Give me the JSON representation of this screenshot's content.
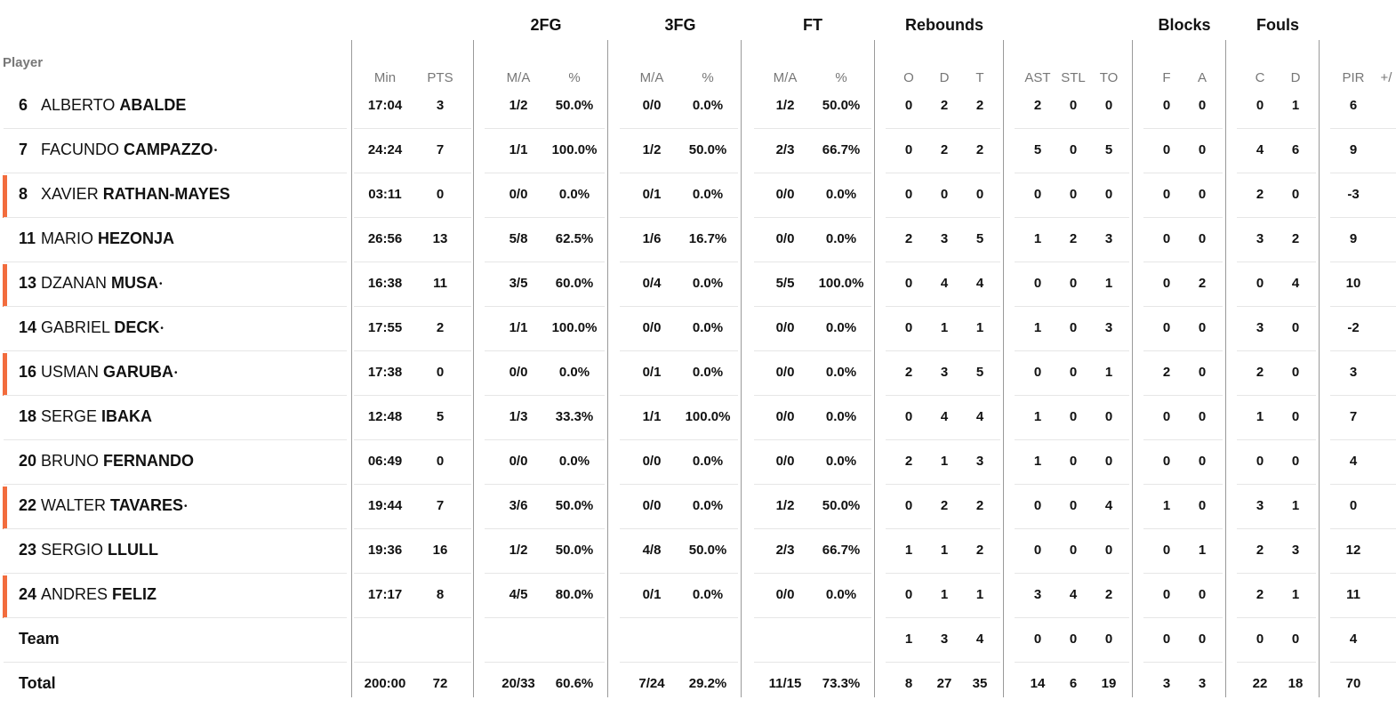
{
  "header": {
    "player_label": "Player",
    "groups": {
      "fg2": "2FG",
      "fg3": "3FG",
      "ft": "FT",
      "reb": "Rebounds",
      "blk": "Blocks",
      "fouls": "Fouls"
    },
    "cols": {
      "min": "Min",
      "pts": "PTS",
      "fg2_ma": "M/A",
      "fg2_pct": "%",
      "fg3_ma": "M/A",
      "fg3_pct": "%",
      "ft_ma": "M/A",
      "ft_pct": "%",
      "o": "O",
      "d": "D",
      "t": "T",
      "ast": "AST",
      "stl": "STL",
      "to": "TO",
      "bf": "F",
      "ba": "A",
      "fc": "C",
      "fd": "D",
      "pir": "PIR",
      "pm": "+/"
    }
  },
  "rows": [
    {
      "num": "6",
      "first": "ALBERTO",
      "last": "ABALDE",
      "star": "",
      "marker": false,
      "min": "17:04",
      "pts": "3",
      "fg2_ma": "1/2",
      "fg2_pct": "50.0%",
      "fg3_ma": "0/0",
      "fg3_pct": "0.0%",
      "ft_ma": "1/2",
      "ft_pct": "50.0%",
      "o": "0",
      "d": "2",
      "t": "2",
      "ast": "2",
      "stl": "0",
      "to": "0",
      "bf": "0",
      "ba": "0",
      "fc": "0",
      "fd": "1",
      "pir": "6"
    },
    {
      "num": "7",
      "first": "FACUNDO",
      "last": "CAMPAZZO",
      "star": "•",
      "marker": false,
      "min": "24:24",
      "pts": "7",
      "fg2_ma": "1/1",
      "fg2_pct": "100.0%",
      "fg3_ma": "1/2",
      "fg3_pct": "50.0%",
      "ft_ma": "2/3",
      "ft_pct": "66.7%",
      "o": "0",
      "d": "2",
      "t": "2",
      "ast": "5",
      "stl": "0",
      "to": "5",
      "bf": "0",
      "ba": "0",
      "fc": "4",
      "fd": "6",
      "pir": "9"
    },
    {
      "num": "8",
      "first": "XAVIER",
      "last": "RATHAN-MAYES",
      "star": "",
      "marker": true,
      "min": "03:11",
      "pts": "0",
      "fg2_ma": "0/0",
      "fg2_pct": "0.0%",
      "fg3_ma": "0/1",
      "fg3_pct": "0.0%",
      "ft_ma": "0/0",
      "ft_pct": "0.0%",
      "o": "0",
      "d": "0",
      "t": "0",
      "ast": "0",
      "stl": "0",
      "to": "0",
      "bf": "0",
      "ba": "0",
      "fc": "2",
      "fd": "0",
      "pir": "-3"
    },
    {
      "num": "11",
      "first": "MARIO",
      "last": "HEZONJA",
      "star": "",
      "marker": false,
      "min": "26:56",
      "pts": "13",
      "fg2_ma": "5/8",
      "fg2_pct": "62.5%",
      "fg3_ma": "1/6",
      "fg3_pct": "16.7%",
      "ft_ma": "0/0",
      "ft_pct": "0.0%",
      "o": "2",
      "d": "3",
      "t": "5",
      "ast": "1",
      "stl": "2",
      "to": "3",
      "bf": "0",
      "ba": "0",
      "fc": "3",
      "fd": "2",
      "pir": "9"
    },
    {
      "num": "13",
      "first": "DZANAN",
      "last": "MUSA",
      "star": "•",
      "marker": true,
      "min": "16:38",
      "pts": "11",
      "fg2_ma": "3/5",
      "fg2_pct": "60.0%",
      "fg3_ma": "0/4",
      "fg3_pct": "0.0%",
      "ft_ma": "5/5",
      "ft_pct": "100.0%",
      "o": "0",
      "d": "4",
      "t": "4",
      "ast": "0",
      "stl": "0",
      "to": "1",
      "bf": "0",
      "ba": "2",
      "fc": "0",
      "fd": "4",
      "pir": "10"
    },
    {
      "num": "14",
      "first": "GABRIEL",
      "last": "DECK",
      "star": "•",
      "marker": false,
      "min": "17:55",
      "pts": "2",
      "fg2_ma": "1/1",
      "fg2_pct": "100.0%",
      "fg3_ma": "0/0",
      "fg3_pct": "0.0%",
      "ft_ma": "0/0",
      "ft_pct": "0.0%",
      "o": "0",
      "d": "1",
      "t": "1",
      "ast": "1",
      "stl": "0",
      "to": "3",
      "bf": "0",
      "ba": "0",
      "fc": "3",
      "fd": "0",
      "pir": "-2"
    },
    {
      "num": "16",
      "first": "USMAN",
      "last": "GARUBA",
      "star": "•",
      "marker": true,
      "min": "17:38",
      "pts": "0",
      "fg2_ma": "0/0",
      "fg2_pct": "0.0%",
      "fg3_ma": "0/1",
      "fg3_pct": "0.0%",
      "ft_ma": "0/0",
      "ft_pct": "0.0%",
      "o": "2",
      "d": "3",
      "t": "5",
      "ast": "0",
      "stl": "0",
      "to": "1",
      "bf": "2",
      "ba": "0",
      "fc": "2",
      "fd": "0",
      "pir": "3"
    },
    {
      "num": "18",
      "first": "SERGE",
      "last": "IBAKA",
      "star": "",
      "marker": false,
      "min": "12:48",
      "pts": "5",
      "fg2_ma": "1/3",
      "fg2_pct": "33.3%",
      "fg3_ma": "1/1",
      "fg3_pct": "100.0%",
      "ft_ma": "0/0",
      "ft_pct": "0.0%",
      "o": "0",
      "d": "4",
      "t": "4",
      "ast": "1",
      "stl": "0",
      "to": "0",
      "bf": "0",
      "ba": "0",
      "fc": "1",
      "fd": "0",
      "pir": "7"
    },
    {
      "num": "20",
      "first": "BRUNO",
      "last": "FERNANDO",
      "star": "",
      "marker": false,
      "min": "06:49",
      "pts": "0",
      "fg2_ma": "0/0",
      "fg2_pct": "0.0%",
      "fg3_ma": "0/0",
      "fg3_pct": "0.0%",
      "ft_ma": "0/0",
      "ft_pct": "0.0%",
      "o": "2",
      "d": "1",
      "t": "3",
      "ast": "1",
      "stl": "0",
      "to": "0",
      "bf": "0",
      "ba": "0",
      "fc": "0",
      "fd": "0",
      "pir": "4"
    },
    {
      "num": "22",
      "first": "WALTER",
      "last": "TAVARES",
      "star": "•",
      "marker": true,
      "min": "19:44",
      "pts": "7",
      "fg2_ma": "3/6",
      "fg2_pct": "50.0%",
      "fg3_ma": "0/0",
      "fg3_pct": "0.0%",
      "ft_ma": "1/2",
      "ft_pct": "50.0%",
      "o": "0",
      "d": "2",
      "t": "2",
      "ast": "0",
      "stl": "0",
      "to": "4",
      "bf": "1",
      "ba": "0",
      "fc": "3",
      "fd": "1",
      "pir": "0"
    },
    {
      "num": "23",
      "first": "SERGIO",
      "last": "LLULL",
      "star": "",
      "marker": false,
      "min": "19:36",
      "pts": "16",
      "fg2_ma": "1/2",
      "fg2_pct": "50.0%",
      "fg3_ma": "4/8",
      "fg3_pct": "50.0%",
      "ft_ma": "2/3",
      "ft_pct": "66.7%",
      "o": "1",
      "d": "1",
      "t": "2",
      "ast": "0",
      "stl": "0",
      "to": "0",
      "bf": "0",
      "ba": "1",
      "fc": "2",
      "fd": "3",
      "pir": "12"
    },
    {
      "num": "24",
      "first": "ANDRES",
      "last": "FELIZ",
      "star": "",
      "marker": true,
      "min": "17:17",
      "pts": "8",
      "fg2_ma": "4/5",
      "fg2_pct": "80.0%",
      "fg3_ma": "0/1",
      "fg3_pct": "0.0%",
      "ft_ma": "0/0",
      "ft_pct": "0.0%",
      "o": "0",
      "d": "1",
      "t": "1",
      "ast": "3",
      "stl": "4",
      "to": "2",
      "bf": "0",
      "ba": "0",
      "fc": "2",
      "fd": "1",
      "pir": "11"
    }
  ],
  "team": {
    "label": "Team",
    "o": "1",
    "d": "3",
    "t": "4",
    "ast": "0",
    "stl": "0",
    "to": "0",
    "bf": "0",
    "ba": "0",
    "fc": "0",
    "fd": "0",
    "pir": "4"
  },
  "total": {
    "label": "Total",
    "min": "200:00",
    "pts": "72",
    "fg2_ma": "20/33",
    "fg2_pct": "60.6%",
    "fg3_ma": "7/24",
    "fg3_pct": "29.2%",
    "ft_ma": "11/15",
    "ft_pct": "73.3%",
    "o": "8",
    "d": "27",
    "t": "35",
    "ast": "14",
    "stl": "6",
    "to": "19",
    "bf": "3",
    "ba": "3",
    "fc": "22",
    "fd": "18",
    "pir": "70"
  },
  "colors": {
    "marker": "#f26c3d",
    "divider": "#9a9a9a",
    "rowline": "#e6e6e6",
    "subheader": "#777777"
  }
}
